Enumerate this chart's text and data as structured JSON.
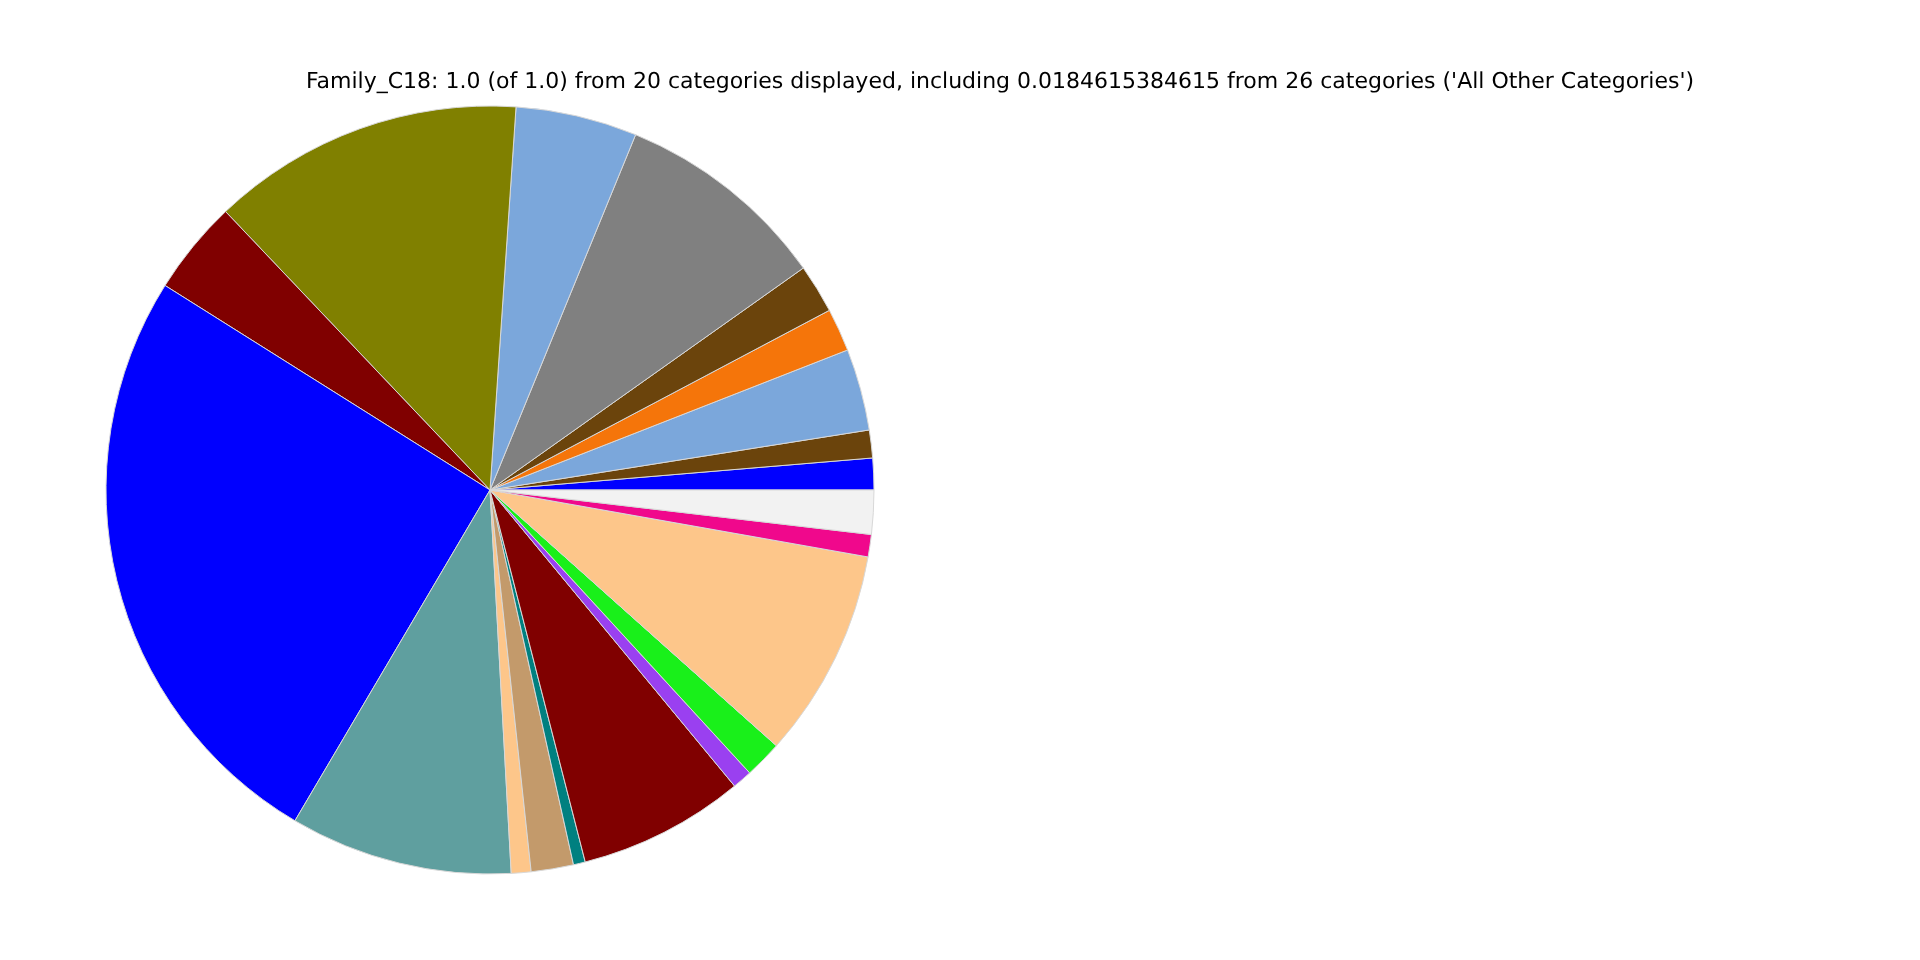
{
  "chart_data": {
    "type": "pie",
    "title": "Family_C18: 1.0 (of 1.0) from 20 categories displayed, including 0.0184615384615 from 26 categories ('All Other Categories')",
    "categories": [
      null,
      null,
      null,
      null,
      null,
      null,
      null,
      null,
      null,
      null,
      null,
      null,
      null,
      null,
      null,
      null,
      null,
      null,
      null,
      null
    ],
    "values": [
      1.33,
      1.17,
      3.44,
      1.81,
      2.06,
      9.0,
      5.11,
      13.17,
      3.97,
      25.46,
      9.36,
      0.83,
      1.78,
      0.5,
      7.0,
      0.83,
      1.58,
      8.81,
      0.94,
      1.85
    ],
    "colors": [
      "#0000ff",
      "#6b440c",
      "#7ba7db",
      "#f5750a",
      "#6b440c",
      "#808080",
      "#7ba7db",
      "#808000",
      "#800000",
      "#0000ff",
      "#5f9f9f",
      "#fdc68a",
      "#c39a6b",
      "#008080",
      "#800000",
      "#9a40f0",
      "#19f01a",
      "#fdc68a",
      "#f0088c",
      "#f2f2f2"
    ],
    "legend": false
  }
}
